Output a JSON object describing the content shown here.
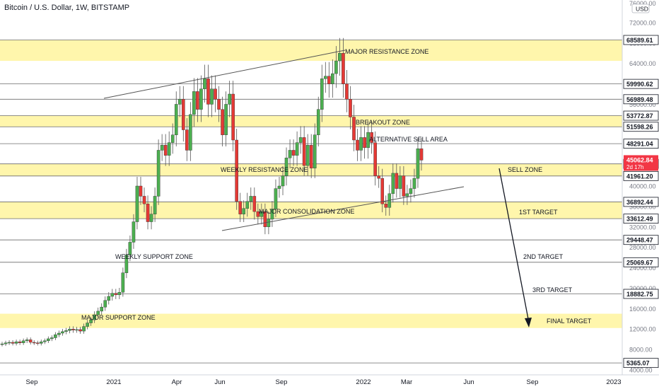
{
  "header": {
    "title": "Bitcoin / U.S. Dollar, 1W, BITSTAMP"
  },
  "price_axis": {
    "currency_label": "USD",
    "top_partial_tick": "76000.00",
    "ticks": [
      "72000.00",
      "68000.00",
      "64000.00",
      "60000.00",
      "56000.00",
      "52000.00",
      "48000.00",
      "44000.00",
      "40000.00",
      "36000.00",
      "32000.00",
      "28000.00",
      "24000.00",
      "20000.00",
      "16000.00",
      "12000.00",
      "8000.00",
      "4000.00"
    ],
    "level_labels": [
      "68589.61",
      "59990.62",
      "56989.48",
      "53772.87",
      "51598.26",
      "48291.04",
      "44336.40",
      "41961.20",
      "36892.44",
      "33612.49",
      "29448.47",
      "25069.67",
      "18882.75",
      "5365.07"
    ],
    "current_price": {
      "value": "45062.84",
      "countdown": "2d 17h",
      "color": "#f23645"
    }
  },
  "time_axis": {
    "ticks": [
      "Sep",
      "2021",
      "Apr",
      "Jun",
      "Sep",
      "2022",
      "Mar",
      "Jun",
      "Sep",
      "2023"
    ]
  },
  "colors": {
    "up": "#26a69a",
    "up_candle": "#4caf50",
    "down": "#e53935",
    "zone": "#fff59d",
    "line": "#131722"
  },
  "chart_data": {
    "type": "candlestick",
    "title": "Bitcoin / U.S. Dollar, 1W, BITSTAMP",
    "ylim": [
      4000,
      76000
    ],
    "x_range": [
      "2020-07",
      "2023-01"
    ],
    "y_axis_position": "right",
    "zones": [
      {
        "name": "MAJOR RESISTANCE ZONE",
        "low": 64500,
        "high": 68589.61
      },
      {
        "name": "BREAKOUT ZONE",
        "low": 51598.26,
        "high": 53772.87
      },
      {
        "name": "WEEKLY RESISTANCE ZONE",
        "low": 41961.2,
        "high": 44336.4
      },
      {
        "name": "MAJOR CONSOLIDATION ZONE",
        "low": 33612.49,
        "high": 36892.44
      },
      {
        "name": "MAJOR SUPPORT ZONE",
        "low": 12200,
        "high": 15000
      }
    ],
    "horizontal_levels": [
      68589.61,
      59990.62,
      56989.48,
      53772.87,
      51598.26,
      48291.04,
      44336.4,
      41961.2,
      36892.44,
      33612.49,
      29448.47,
      25069.67,
      18882.75,
      5365.07
    ],
    "annotations": [
      "MAJOR RESISTANCE ZONE",
      "BREAKOUT ZONE",
      "ALTERNATIVE SELL AREA",
      "WEEKLY RESISTANCE ZONE",
      "SELL ZONE",
      "MAJOR CONSOLIDATION ZONE",
      "1ST TARGET",
      "WEEKLY SUPPORT ZONE",
      "2ND TARGET",
      "3RD TARGET",
      "MAJOR SUPPORT ZONE",
      "FINAL TARGET"
    ],
    "close_series": [
      9100,
      9300,
      9400,
      9200,
      9500,
      9300,
      9700,
      9900,
      9400,
      9300,
      9200,
      9500,
      9700,
      10100,
      10300,
      10900,
      11200,
      11500,
      11700,
      12000,
      11800,
      11900,
      11600,
      12500,
      13200,
      13800,
      14800,
      15500,
      16300,
      17600,
      18400,
      19000,
      18700,
      19200,
      23000,
      26500,
      29000,
      33000,
      40000,
      38000,
      36500,
      33000,
      34500,
      38000,
      47000,
      48000,
      46000,
      48500,
      50000,
      56000,
      57000,
      51000,
      47000,
      54000,
      58500,
      55000,
      59000,
      61000,
      56000,
      59000,
      57000,
      55000,
      50000,
      56000,
      58000,
      49000,
      37000,
      34500,
      35600,
      37000,
      38000,
      35000,
      34000,
      35000,
      32000,
      33500,
      35500,
      39500,
      40000,
      42000,
      45500,
      47000,
      46000,
      48500,
      49500,
      44000,
      48000,
      43500,
      50000,
      55000,
      61000,
      61500,
      60000,
      62000,
      64500,
      66000,
      60000,
      57000,
      53500,
      49000,
      47000,
      49500,
      47500,
      50500,
      48500,
      42000,
      41500,
      36500,
      35800,
      38500,
      42500,
      39500,
      42000,
      38000,
      38500,
      39500,
      41500,
      47300,
      45062
    ]
  }
}
